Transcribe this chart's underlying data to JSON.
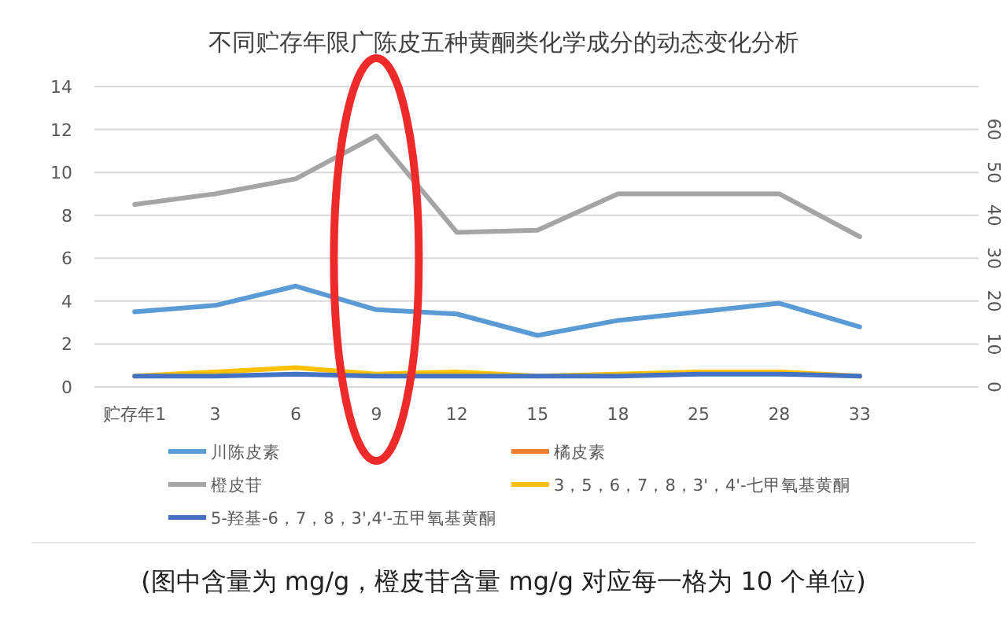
{
  "chart_data": {
    "type": "line",
    "title": "不同贮存年限广陈皮五种黄酮类化学成分的动态变化分析",
    "categories": [
      "贮存年1",
      "3",
      "6",
      "9",
      "12",
      "15",
      "18",
      "25",
      "28",
      "33"
    ],
    "series": [
      {
        "name": "川陈皮素",
        "color": "#5b9bd5",
        "values": [
          3.5,
          3.8,
          4.7,
          3.6,
          3.4,
          2.4,
          3.1,
          3.5,
          3.9,
          2.8
        ]
      },
      {
        "name": "橘皮素",
        "color": "#ed7d31",
        "values": [
          null,
          null,
          null,
          null,
          null,
          null,
          null,
          null,
          null,
          null
        ]
      },
      {
        "name": "橙皮苷",
        "color": "#a5a5a5",
        "axis": "y2",
        "values": [
          42.5,
          45,
          48.5,
          58.5,
          36,
          36.5,
          45,
          45,
          45,
          35
        ]
      },
      {
        "name": "3，5，6，7，8，3'，4'-七甲氧基黄酮",
        "color": "#ffc000",
        "values": [
          0.5,
          0.7,
          0.9,
          0.6,
          0.7,
          0.5,
          0.6,
          0.7,
          0.7,
          0.5
        ]
      },
      {
        "name": "5-羟基-6，7，8，3',4'-五甲氧基黄酮",
        "color": "#4472c4",
        "values": [
          0.5,
          0.5,
          0.6,
          0.5,
          0.5,
          0.5,
          0.5,
          0.6,
          0.6,
          0.5
        ]
      }
    ],
    "ylim": [
      0,
      14
    ],
    "yticks": [
      0,
      2,
      4,
      6,
      8,
      10,
      12,
      14
    ],
    "y2lim": [
      0,
      70
    ],
    "y2ticks": [
      0,
      10,
      20,
      30,
      40,
      50,
      60
    ],
    "grid": "y",
    "legend": "bottom",
    "marker": "none",
    "line_style": "solid",
    "annotations": [
      "(图中含量为 mg/g，橙皮苷含量 mg/g 对应每一格为 10 个单位)"
    ]
  }
}
